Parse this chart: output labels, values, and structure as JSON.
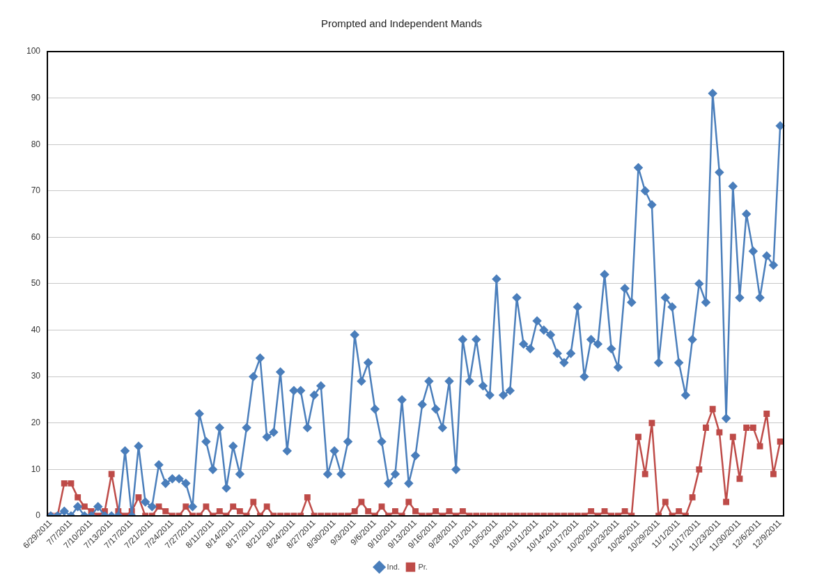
{
  "chart_data": {
    "type": "line",
    "title": "Prompted and Independent Mands",
    "categories": [
      "6/29/2011",
      null,
      null,
      "7/7/2011",
      null,
      null,
      "7/10/2011",
      null,
      null,
      "7/13/2011",
      null,
      null,
      "7/17/2011",
      null,
      null,
      "7/21/2011",
      null,
      null,
      "7/24/2011",
      null,
      null,
      "7/27/2011",
      null,
      null,
      "8/11/2011",
      null,
      null,
      "8/14/2011",
      null,
      null,
      "8/17/2011",
      null,
      null,
      "8/21/2011",
      null,
      null,
      "8/24/2011",
      null,
      null,
      "8/27/2011",
      null,
      null,
      "8/30/2011",
      null,
      null,
      "9/3/2011",
      null,
      null,
      "9/6/2011",
      null,
      null,
      "9/10/2011",
      null,
      null,
      "9/13/2011",
      null,
      null,
      "9/16/2011",
      null,
      null,
      "9/28/2011",
      null,
      null,
      "10/1/2011",
      null,
      null,
      "10/5/2011",
      null,
      null,
      "10/8/2011",
      null,
      null,
      "10/11/2011",
      null,
      null,
      "10/14/2011",
      null,
      null,
      "10/17/2011",
      null,
      null,
      "10/20/2011",
      null,
      null,
      "10/23/2011",
      null,
      null,
      "10/26/2011",
      null,
      null,
      "10/29/2011",
      null,
      null,
      "11/1/2011",
      null,
      null,
      "11/17/2011",
      null,
      null,
      "11/23/2011",
      null,
      null,
      "11/30/2011",
      null,
      null,
      "12/6/2011",
      null,
      null,
      "12/9/2011"
    ],
    "series": [
      {
        "name": "Ind.",
        "color": "#4a7ebb",
        "marker": "diamond",
        "values": [
          0,
          0,
          1,
          0,
          2,
          0,
          0,
          2,
          0,
          0,
          0,
          14,
          0,
          15,
          3,
          2,
          11,
          7,
          8,
          8,
          7,
          2,
          22,
          16,
          10,
          19,
          6,
          15,
          9,
          19,
          30,
          34,
          17,
          18,
          31,
          14,
          27,
          27,
          19,
          26,
          28,
          9,
          14,
          9,
          16,
          39,
          29,
          33,
          23,
          16,
          7,
          9,
          25,
          7,
          13,
          24,
          29,
          23,
          19,
          29,
          10,
          38,
          29,
          38,
          28,
          26,
          51,
          26,
          27,
          47,
          37,
          36,
          42,
          40,
          39,
          35,
          33,
          35,
          45,
          30,
          38,
          37,
          52,
          36,
          32,
          49,
          46,
          75,
          70,
          67,
          33,
          47,
          45,
          33,
          26,
          38,
          50,
          46,
          91,
          74,
          21,
          71,
          47,
          65,
          57,
          47,
          56,
          54,
          84
        ]
      },
      {
        "name": "Pr.",
        "color": "#be4b48",
        "marker": "square",
        "values": [
          0,
          0,
          7,
          7,
          4,
          2,
          1,
          0,
          1,
          9,
          1,
          0,
          1,
          4,
          0,
          0,
          2,
          1,
          0,
          0,
          2,
          0,
          0,
          2,
          0,
          1,
          0,
          2,
          1,
          0,
          3,
          0,
          2,
          0,
          0,
          0,
          0,
          0,
          4,
          0,
          0,
          0,
          0,
          0,
          0,
          1,
          3,
          1,
          0,
          2,
          0,
          1,
          0,
          3,
          1,
          0,
          0,
          1,
          0,
          1,
          0,
          1,
          0,
          0,
          0,
          0,
          0,
          0,
          0,
          0,
          0,
          0,
          0,
          0,
          0,
          0,
          0,
          0,
          0,
          0,
          1,
          0,
          1,
          0,
          0,
          1,
          0,
          17,
          9,
          20,
          0,
          3,
          0,
          1,
          0,
          4,
          10,
          19,
          23,
          18,
          3,
          17,
          8,
          19,
          19,
          15,
          22,
          9,
          16
        ]
      }
    ],
    "ylim": [
      0,
      100
    ],
    "yticks": [
      0,
      10,
      20,
      30,
      40,
      50,
      60,
      70,
      80,
      90,
      100
    ],
    "grid": "y",
    "legend": "bottom"
  }
}
